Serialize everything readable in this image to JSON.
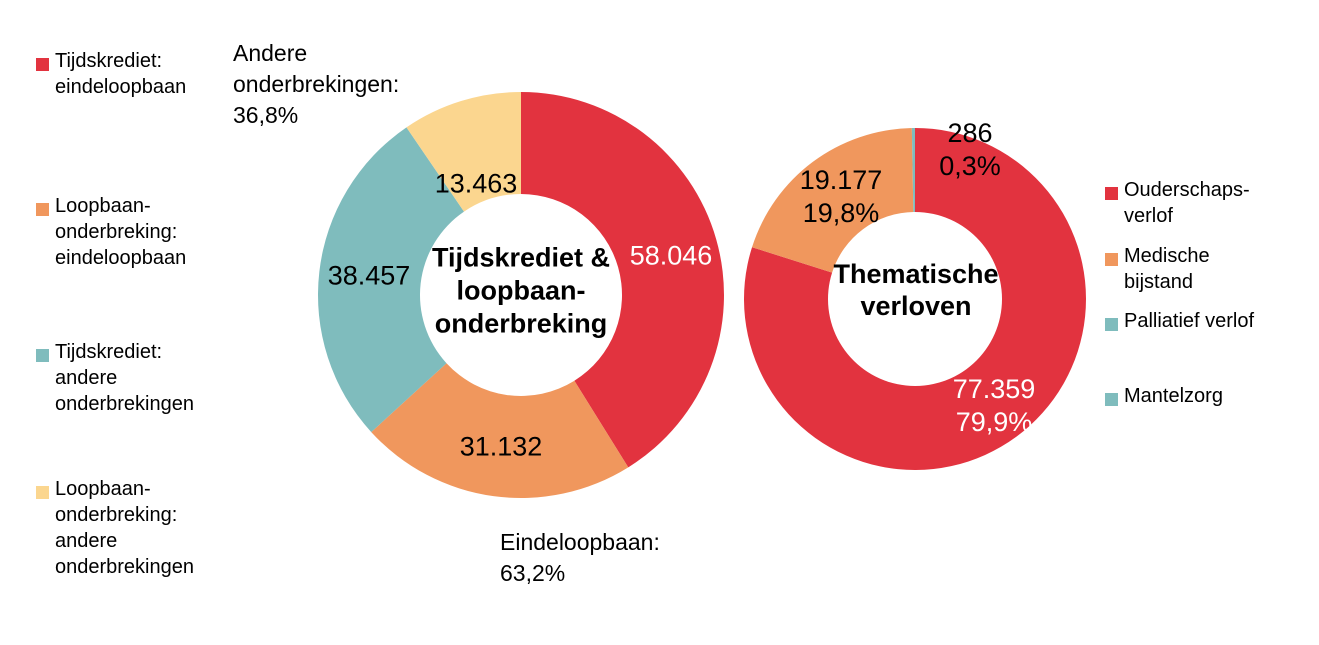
{
  "page": {
    "background": "#FFFFFF"
  },
  "colors": {
    "red": "#E2333F",
    "orange": "#F0975D",
    "teal": "#7FBCBD",
    "cream": "#FBD68F",
    "label_white": "#FFFFFF",
    "label_black": "#000000"
  },
  "chart_data": [
    {
      "type": "pie",
      "subtype": "donut",
      "title": "Tijdskrediet & loopbaan-onderbreking",
      "center_label": "Tijdskrediet &\nloopbaan-\nonderbreking",
      "legend_position": "left",
      "total": 141098,
      "series": [
        {
          "name": "Tijdskrediet: eindeloopbaan",
          "value": 58046,
          "value_label": "58.046",
          "color": "#E2333F",
          "label_color": "#FFFFFF"
        },
        {
          "name": "Loopbaan-onderbreking: eindeloopbaan",
          "value": 31132,
          "value_label": "31.132",
          "color": "#F0975D",
          "label_color": "#000000"
        },
        {
          "name": "Tijdskrediet: andere onderbrekingen",
          "value": 38457,
          "value_label": "38.457",
          "color": "#7FBCBD",
          "label_color": "#000000"
        },
        {
          "name": "Loopbaan-onderbreking: andere onderbrekingen",
          "value": 13463,
          "value_label": "13.463",
          "color": "#FBD68F",
          "label_color": "#000000"
        }
      ],
      "annotations": [
        {
          "id": "andere",
          "text": "Andere\nonderbrekingen:\n36,8%"
        },
        {
          "id": "eindeloopbaan",
          "text": "Eindeloopbaan:\n63,2%"
        }
      ]
    },
    {
      "type": "pie",
      "subtype": "donut",
      "title": "Thematische verloven",
      "center_label": "Thematische\nverloven",
      "legend_position": "right",
      "total": 96822,
      "series": [
        {
          "name": "Ouderschapsverlof",
          "value": 77359,
          "value_label": "77.359\n79,9%",
          "color": "#E2333F",
          "label_color": "#FFFFFF"
        },
        {
          "name": "Medische bijstand",
          "value": 19177,
          "value_label": "19.177\n19,8%",
          "color": "#F0975D",
          "label_color": "#000000"
        },
        {
          "name": "Palliatief verlof",
          "value": 286,
          "value_label": "286\n0,3%",
          "color": "#7FBCBD",
          "label_color": "#000000"
        },
        {
          "name": "Mantelzorg",
          "value": 0,
          "value_label": "",
          "color": "#7FBCBD",
          "label_color": "#000000"
        }
      ]
    }
  ],
  "legend_left": {
    "items": [
      {
        "label": "Tijdskrediet:\neindeloopbaan",
        "color": "#E2333F"
      },
      {
        "label": "Loopbaan-\nonderbreking:\neindeloopbaan",
        "color": "#F0975D"
      },
      {
        "label": "Tijdskrediet:\nandere\nonderbrekingen",
        "color": "#7FBCBD"
      },
      {
        "label": "Loopbaan-\nonderbreking:\nandere\nonderbrekingen",
        "color": "#FBD68F"
      }
    ]
  },
  "legend_right": {
    "items": [
      {
        "label": "Ouderschaps-\nverlof",
        "color": "#E2333F"
      },
      {
        "label": "Medische\nbijstand",
        "color": "#F0975D"
      },
      {
        "label": "Palliatief verlof",
        "color": "#7FBCBD"
      },
      {
        "label": "Mantelzorg",
        "color": "#7FBCBD"
      }
    ]
  }
}
